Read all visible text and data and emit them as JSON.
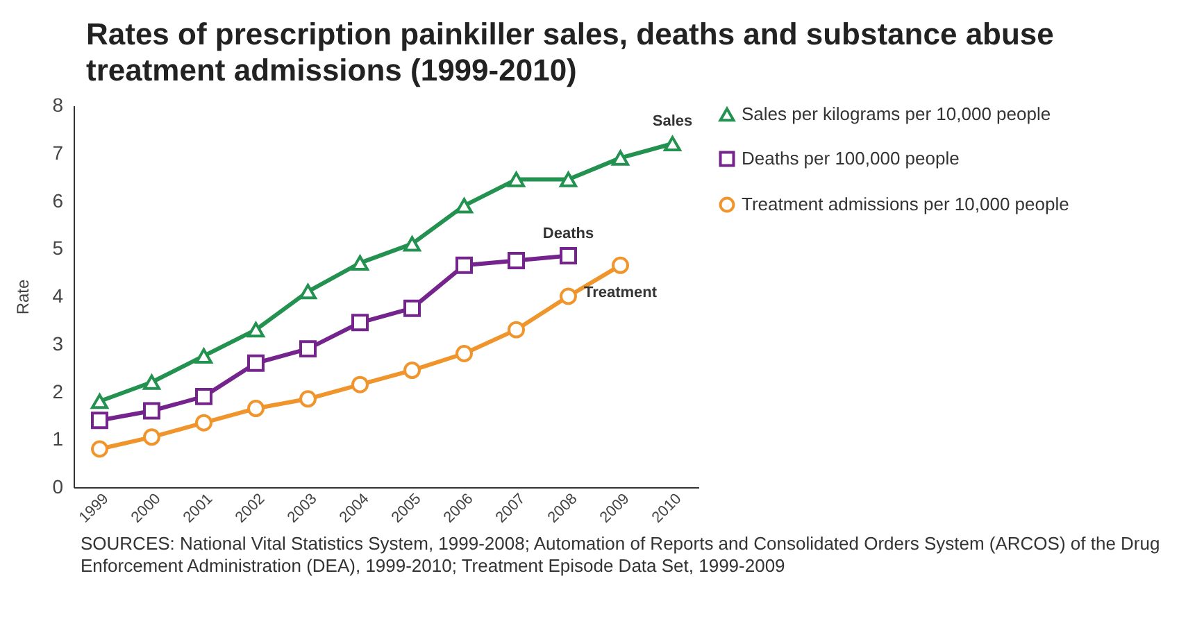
{
  "chart_data": {
    "type": "line",
    "title": "Rates of prescription painkiller sales, deaths and substance abuse treatment admissions (1999-2010)",
    "ylabel": "Rate",
    "categories": [
      "1999",
      "2000",
      "2001",
      "2002",
      "2003",
      "2004",
      "2005",
      "2006",
      "2007",
      "2008",
      "2009",
      "2010"
    ],
    "series": [
      {
        "name": "Sales per kilograms per 10,000 people",
        "color": "#23914f",
        "marker": "triangle",
        "values": [
          1.8,
          2.2,
          2.75,
          3.3,
          4.1,
          4.7,
          5.1,
          5.9,
          6.45,
          6.45,
          6.9,
          7.2
        ]
      },
      {
        "name": "Deaths per 100,000 people",
        "color": "#74248c",
        "marker": "square",
        "values": [
          1.4,
          1.6,
          1.9,
          2.6,
          2.9,
          3.45,
          3.75,
          4.65,
          4.75,
          4.85,
          null,
          null
        ]
      },
      {
        "name": "Treatment admissions per 10,000 people",
        "color": "#f0952c",
        "marker": "circle",
        "values": [
          0.8,
          1.05,
          1.35,
          1.65,
          1.85,
          2.15,
          2.45,
          2.8,
          3.3,
          4.0,
          4.65,
          null
        ]
      }
    ],
    "ylim": [
      0,
      8
    ],
    "yticks": [
      0,
      1,
      2,
      3,
      4,
      5,
      6,
      7,
      8
    ],
    "grid": false,
    "legend": "right",
    "line_style": "solid",
    "annotations": [
      {
        "text": "Sales",
        "x": "2010",
        "y": 7.2
      },
      {
        "text": "Deaths",
        "x": "2008",
        "y": 4.85
      },
      {
        "text": "Treatment",
        "x": "2009",
        "y": 4.65
      },
      "SOURCES: National Vital Statistics System, 1999-2008; Automation of Reports and Consolidated Orders System (ARCOS) of the Drug Enforcement Administration (DEA), 1999-2010; Treatment Episode Data Set, 1999-2009"
    ]
  }
}
